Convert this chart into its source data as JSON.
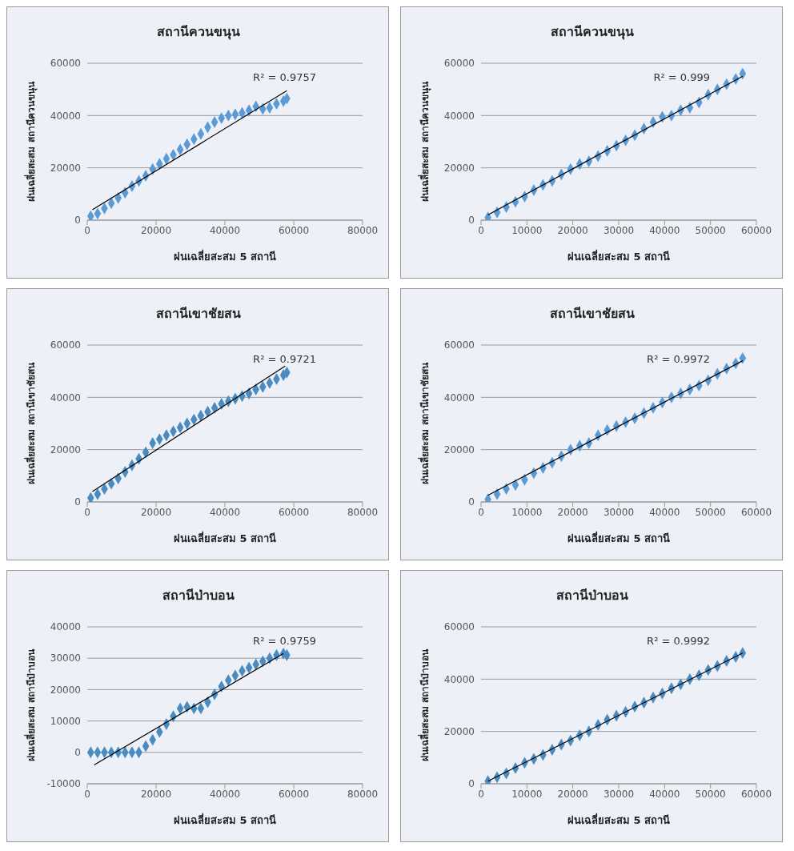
{
  "chart_data": [
    {
      "type": "scatter",
      "title": "สถานีควนขนุน",
      "xlabel": "ฝนเฉลี่ยสะสม 5 สถานี",
      "ylabel": "ฝนเฉลี่ยสะสม สถานีควนขนุน",
      "annotations": [
        "R² = 0.9757"
      ],
      "xlim": [
        0,
        80000
      ],
      "xticks": [
        0,
        20000,
        40000,
        60000,
        80000
      ],
      "ylim": [
        0,
        60000
      ],
      "yticks": [
        0,
        20000,
        40000,
        60000
      ],
      "grid": "y",
      "marker": "diamond",
      "series": [
        {
          "type": "scatter",
          "color": "#5b9bd5",
          "x": [
            1000,
            3000,
            5000,
            7000,
            9000,
            11000,
            13000,
            15000,
            17000,
            19000,
            21000,
            23000,
            25000,
            27000,
            29000,
            31000,
            33000,
            35000,
            37000,
            39000,
            41000,
            43000,
            45000,
            47000,
            49000,
            51000,
            53000,
            55000,
            57000,
            58000
          ],
          "values": [
            1500,
            2500,
            4500,
            6500,
            8500,
            10500,
            13000,
            15000,
            17000,
            19500,
            21500,
            23500,
            25000,
            27000,
            29000,
            31000,
            33000,
            35500,
            37500,
            39000,
            40000,
            40500,
            41000,
            42000,
            43500,
            42500,
            43000,
            44500,
            45500,
            46500
          ]
        },
        {
          "type": "line",
          "color": "#000000",
          "marker": "none",
          "x": [
            1500,
            58000
          ],
          "values": [
            4000,
            49500
          ]
        }
      ]
    },
    {
      "type": "scatter",
      "title": "สถานีควนขนุน",
      "xlabel": "ฝนเฉลี่ยสะสม 5 สถานี",
      "ylabel": "ฝนเฉลี่ยสะสม สถานีควนขนุน",
      "annotations": [
        "R² = 0.999"
      ],
      "xlim": [
        0,
        60000
      ],
      "xticks": [
        0,
        10000,
        20000,
        30000,
        40000,
        50000,
        60000
      ],
      "ylim": [
        0,
        60000
      ],
      "yticks": [
        0,
        20000,
        40000,
        60000
      ],
      "grid": "y",
      "marker": "diamond",
      "series": [
        {
          "type": "scatter",
          "color": "#5b9bd5",
          "x": [
            1500,
            3500,
            5500,
            7500,
            9500,
            11500,
            13500,
            15500,
            17500,
            19500,
            21500,
            23500,
            25500,
            27500,
            29500,
            31500,
            33500,
            35500,
            37500,
            39500,
            41500,
            43500,
            45500,
            47500,
            49500,
            51500,
            53500,
            55500,
            57000
          ],
          "values": [
            1000,
            3000,
            5000,
            7000,
            9000,
            11500,
            13500,
            15000,
            17500,
            19500,
            21500,
            22500,
            24500,
            26500,
            28500,
            30500,
            32500,
            35000,
            37500,
            39500,
            40000,
            42000,
            43000,
            45000,
            48000,
            50000,
            52000,
            54000,
            56000
          ]
        },
        {
          "type": "line",
          "color": "#000000",
          "marker": "none",
          "x": [
            1500,
            57000
          ],
          "values": [
            2000,
            55000
          ]
        }
      ]
    },
    {
      "type": "scatter",
      "title": "สถานีเขาชัยสน",
      "xlabel": "ฝนเฉลี่ยสะสม 5 สถานี",
      "ylabel": "ฝนเฉลี่ยสะสม สถานีเขาชัยสน",
      "annotations": [
        "R² = 0.9721"
      ],
      "xlim": [
        0,
        80000
      ],
      "xticks": [
        0,
        20000,
        40000,
        60000,
        80000
      ],
      "ylim": [
        0,
        60000
      ],
      "yticks": [
        0,
        20000,
        40000,
        60000
      ],
      "grid": "y",
      "marker": "diamond",
      "series": [
        {
          "type": "scatter",
          "color": "#4a8cc0",
          "x": [
            1000,
            3000,
            5000,
            7000,
            9000,
            11000,
            13000,
            15000,
            17000,
            19000,
            21000,
            23000,
            25000,
            27000,
            29000,
            31000,
            33000,
            35000,
            37000,
            39000,
            41000,
            43000,
            45000,
            47000,
            49000,
            51000,
            53000,
            55000,
            57000,
            58000
          ],
          "values": [
            1500,
            3000,
            5000,
            7000,
            9000,
            11500,
            14000,
            16500,
            19000,
            22500,
            24000,
            25500,
            27000,
            28500,
            30000,
            31500,
            33000,
            34500,
            36000,
            37500,
            38500,
            39500,
            40500,
            41500,
            43000,
            44000,
            45500,
            47000,
            48500,
            49500
          ]
        },
        {
          "type": "line",
          "color": "#000000",
          "marker": "none",
          "x": [
            1500,
            57500
          ],
          "values": [
            4000,
            52000
          ]
        }
      ]
    },
    {
      "type": "scatter",
      "title": "สถานีเขาชัยสน",
      "xlabel": "ฝนเฉลี่ยสะสม 5 สถานี",
      "ylabel": "ฝนเฉลี่ยสะสม สถานีเขาชัยสน",
      "annotations": [
        "R² = 0.9972"
      ],
      "xlim": [
        0,
        60000
      ],
      "xticks": [
        0,
        10000,
        20000,
        30000,
        40000,
        50000,
        60000
      ],
      "ylim": [
        0,
        60000
      ],
      "yticks": [
        0,
        20000,
        40000,
        60000
      ],
      "grid": "y",
      "marker": "diamond",
      "series": [
        {
          "type": "scatter",
          "color": "#5b9bd5",
          "x": [
            1500,
            3500,
            5500,
            7500,
            9500,
            11500,
            13500,
            15500,
            17500,
            19500,
            21500,
            23500,
            25500,
            27500,
            29500,
            31500,
            33500,
            35500,
            37500,
            39500,
            41500,
            43500,
            45500,
            47500,
            49500,
            51500,
            53500,
            55500,
            57000
          ],
          "values": [
            1000,
            3000,
            5000,
            6500,
            8500,
            11000,
            13000,
            15000,
            17500,
            20000,
            21500,
            22500,
            25500,
            27500,
            29000,
            30500,
            32000,
            34000,
            36000,
            38000,
            40000,
            41500,
            43000,
            44500,
            46500,
            49000,
            51000,
            53000,
            55000
          ]
        },
        {
          "type": "line",
          "color": "#000000",
          "marker": "none",
          "x": [
            1500,
            57000
          ],
          "values": [
            2500,
            54000
          ]
        }
      ]
    },
    {
      "type": "scatter",
      "title": "สถานีป่าบอน",
      "xlabel": "ฝนเฉลี่ยสะสม 5 สถานี",
      "ylabel": "ฝนเฉลี่ยสะสม สถานีป่าบอน",
      "annotations": [
        "R² = 0.9759"
      ],
      "xlim": [
        0,
        80000
      ],
      "xticks": [
        0,
        20000,
        40000,
        60000,
        80000
      ],
      "ylim": [
        -10000,
        40000
      ],
      "yticks": [
        -10000,
        0,
        10000,
        20000,
        30000,
        40000
      ],
      "grid": "y",
      "marker": "diamond",
      "series": [
        {
          "type": "scatter",
          "color": "#4a8cc0",
          "x": [
            1000,
            3000,
            5000,
            7000,
            9000,
            11000,
            13000,
            15000,
            17000,
            19000,
            21000,
            23000,
            25000,
            27000,
            29000,
            31000,
            33000,
            35000,
            37000,
            39000,
            41000,
            43000,
            45000,
            47000,
            49000,
            51000,
            53000,
            55000,
            57000,
            58000
          ],
          "values": [
            0,
            0,
            0,
            0,
            0,
            0,
            0,
            0,
            2000,
            4000,
            6500,
            9000,
            11500,
            14000,
            14500,
            14000,
            14000,
            16000,
            18500,
            21000,
            23000,
            24500,
            26000,
            27000,
            28000,
            29000,
            30000,
            31000,
            31500,
            31000
          ]
        },
        {
          "type": "line",
          "color": "#000000",
          "marker": "none",
          "x": [
            2000,
            57000
          ],
          "values": [
            -4000,
            31500
          ]
        }
      ]
    },
    {
      "type": "scatter",
      "title": "สถานีป่าบอน",
      "xlabel": "ฝนเฉลี่ยสะสม 5 สถานี",
      "ylabel": "ฝนเฉลี่ยสะสม สถานีป่าบอน",
      "annotations": [
        "R² = 0.9992"
      ],
      "xlim": [
        0,
        60000
      ],
      "xticks": [
        0,
        10000,
        20000,
        30000,
        40000,
        50000,
        60000
      ],
      "ylim": [
        0,
        60000
      ],
      "yticks": [
        0,
        20000,
        40000,
        60000
      ],
      "grid": "y",
      "marker": "diamond",
      "series": [
        {
          "type": "scatter",
          "color": "#4a8cc0",
          "x": [
            1500,
            3500,
            5500,
            7500,
            9500,
            11500,
            13500,
            15500,
            17500,
            19500,
            21500,
            23500,
            25500,
            27500,
            29500,
            31500,
            33500,
            35500,
            37500,
            39500,
            41500,
            43500,
            45500,
            47500,
            49500,
            51500,
            53500,
            55500,
            57000
          ],
          "values": [
            1000,
            2500,
            4000,
            6000,
            8000,
            9500,
            11000,
            13000,
            15000,
            16500,
            18500,
            20000,
            22500,
            24500,
            26000,
            27500,
            29500,
            31000,
            33000,
            34500,
            36500,
            38000,
            40000,
            41500,
            43500,
            45000,
            47000,
            48500,
            50000
          ]
        },
        {
          "type": "line",
          "color": "#000000",
          "marker": "none",
          "x": [
            1500,
            57000
          ],
          "values": [
            1000,
            50000
          ]
        }
      ]
    }
  ]
}
